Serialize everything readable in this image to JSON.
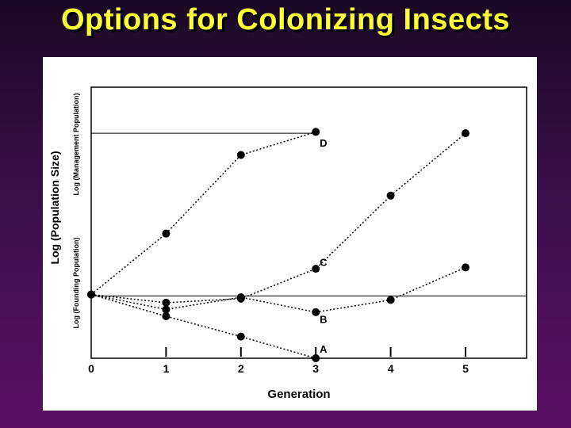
{
  "slide": {
    "title": "Options for Colonizing Insects"
  },
  "colors": {
    "title_text": "#ffff33",
    "background_top": "#1a0a24",
    "background_bottom": "#5a0f63",
    "panel": "#ffffff",
    "ink": "#000000"
  },
  "chart_data": {
    "type": "line",
    "xlabel": "Generation",
    "ylabel": "Log (Population Size)",
    "ylabel_upper": "Log (Management Population)",
    "ylabel_lower": "Log (Founding Population)",
    "x_ticks": [
      "0",
      "1",
      "2",
      "3",
      "4",
      "5"
    ],
    "xlim": [
      0,
      5.35
    ],
    "ylim": [
      0,
      10
    ],
    "management_level": 8.3,
    "founding_level": 2.3,
    "grid": false,
    "legend": "none",
    "series": [
      {
        "name": "D",
        "x": [
          0,
          1,
          2,
          3
        ],
        "y": [
          2.35,
          4.6,
          7.5,
          8.35
        ]
      },
      {
        "name": "C",
        "x": [
          0,
          1,
          2,
          3,
          4,
          5
        ],
        "y": [
          2.35,
          2.05,
          2.2,
          3.3,
          6.0,
          8.3
        ]
      },
      {
        "name": "B",
        "x": [
          0,
          1,
          2,
          3,
          4,
          5
        ],
        "y": [
          2.35,
          1.8,
          2.25,
          1.7,
          2.15,
          3.35
        ]
      },
      {
        "name": "A",
        "x": [
          0,
          1,
          2,
          3
        ],
        "y": [
          2.35,
          1.55,
          0.8,
          0.0
        ]
      }
    ],
    "annotations": [
      {
        "text": "D",
        "x": 3.25,
        "y": 7.8
      },
      {
        "text": "C",
        "x": 3.25,
        "y": 3.4
      },
      {
        "text": "B",
        "x": 3.25,
        "y": 1.3
      },
      {
        "text": "A",
        "x": 3.25,
        "y": 0.2
      }
    ]
  }
}
